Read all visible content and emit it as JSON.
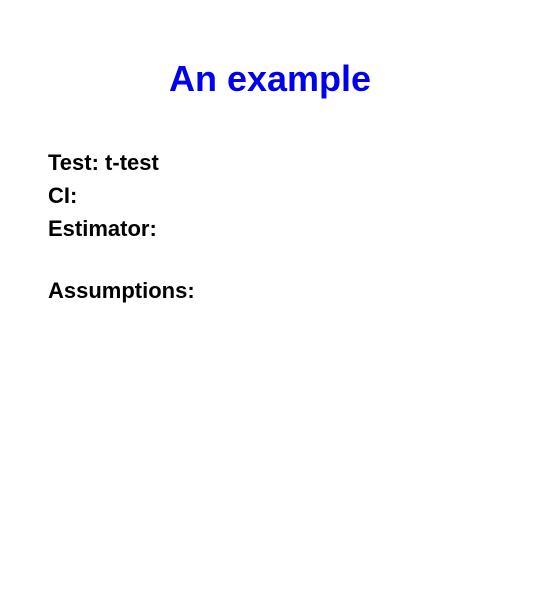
{
  "slide": {
    "title": "An example",
    "title_color": "#0000ee",
    "title_fontsize": 36,
    "title_fontweight": "bold",
    "background_color": "#ffffff",
    "body_color": "#000000",
    "body_fontsize": 22,
    "body_fontweight": "bold",
    "lines": [
      {
        "label": "Test:",
        "value": " t-test"
      },
      {
        "label": "CI:",
        "value": ""
      },
      {
        "label": "Estimator:",
        "value": ""
      }
    ],
    "assumptions_label": "Assumptions:"
  }
}
